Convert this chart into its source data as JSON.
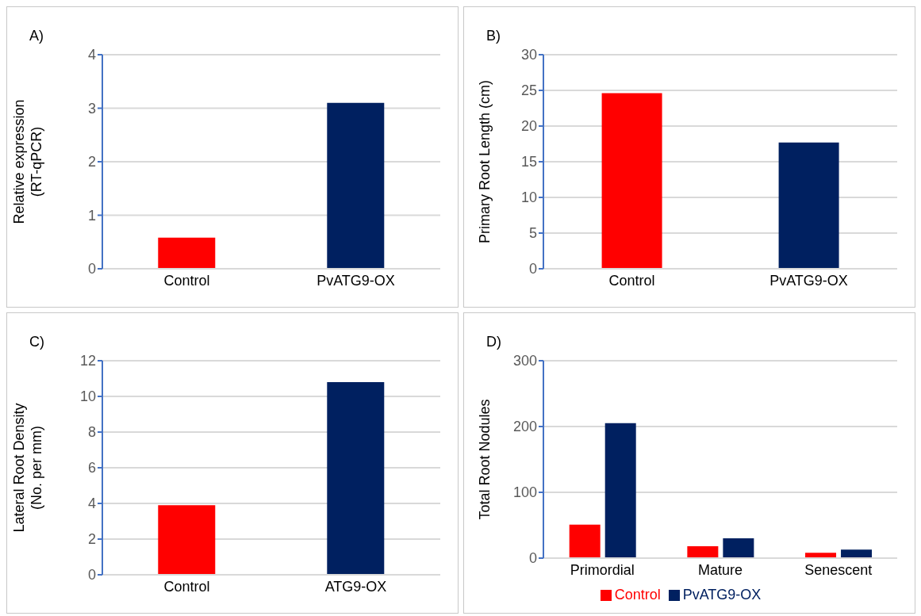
{
  "chart_data": [
    {
      "type": "bar",
      "title": "A)",
      "ylabel": "Relative expression\n(RT-qPCR)",
      "categories": [
        "Control",
        "PvATG9-OX"
      ],
      "values": [
        0.58,
        3.1
      ],
      "colors": [
        "#ff0000",
        "#002060"
      ],
      "ylim": [
        0,
        4
      ],
      "yticks": [
        0,
        1,
        2,
        3,
        4
      ],
      "grid": "y"
    },
    {
      "type": "bar",
      "title": "B)",
      "ylabel": "Primary Root Length (cm)",
      "categories": [
        "Control",
        "PvATG9-OX"
      ],
      "values": [
        24.6,
        17.7
      ],
      "colors": [
        "#ff0000",
        "#002060"
      ],
      "ylim": [
        0,
        30
      ],
      "yticks": [
        0,
        5,
        10,
        15,
        20,
        25,
        30
      ],
      "grid": "y"
    },
    {
      "type": "bar",
      "title": "C)",
      "ylabel": "Lateral Root Density\n(No. per mm)",
      "categories": [
        "Control",
        "ATG9-OX"
      ],
      "values": [
        3.9,
        10.8
      ],
      "colors": [
        "#ff0000",
        "#002060"
      ],
      "ylim": [
        0,
        12
      ],
      "yticks": [
        0,
        2,
        4,
        6,
        8,
        10,
        12
      ],
      "grid": "y"
    },
    {
      "type": "bar",
      "title": "D)",
      "ylabel": "Total Root Nodules",
      "categories": [
        "Primordial",
        "Mature",
        "Senescent"
      ],
      "series": [
        {
          "name": "Control",
          "color": "#ff0000",
          "values": [
            51,
            18,
            8
          ]
        },
        {
          "name": "PvATG9-OX",
          "color": "#002060",
          "values": [
            205,
            30,
            13
          ]
        }
      ],
      "ylim": [
        0,
        300
      ],
      "yticks": [
        0,
        100,
        200,
        300
      ],
      "grid": "y",
      "legend": "bottom"
    }
  ]
}
